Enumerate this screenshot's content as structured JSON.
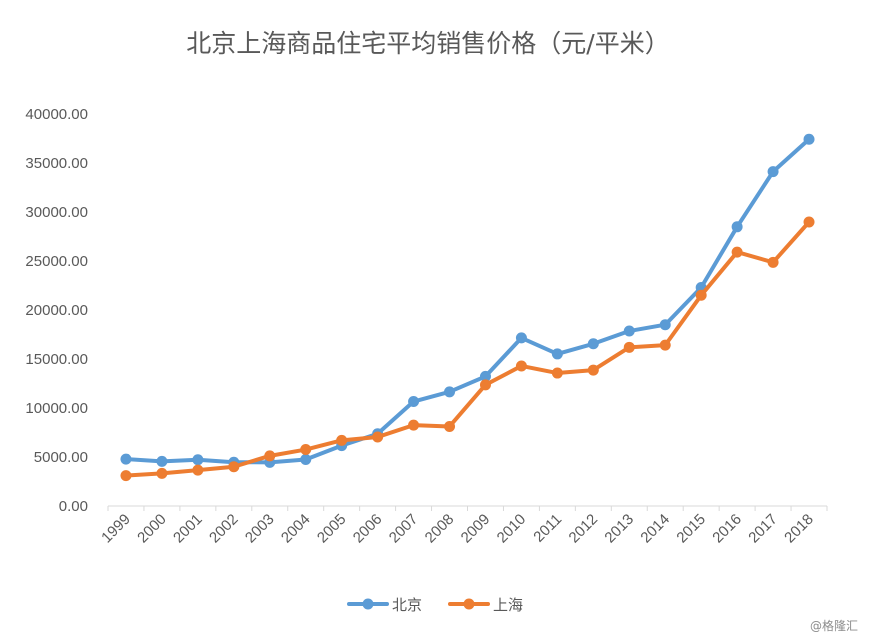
{
  "chart_data": {
    "type": "line",
    "title": "北京上海商品住宅平均销售价格（元/平米）",
    "categories": [
      "1999",
      "2000",
      "2001",
      "2002",
      "2003",
      "2004",
      "2005",
      "2006",
      "2007",
      "2008",
      "2009",
      "2010",
      "2011",
      "2012",
      "2013",
      "2014",
      "2015",
      "2016",
      "2017",
      "2018"
    ],
    "ylim": [
      0,
      40000
    ],
    "yticks": [
      "0.00",
      "5000.00",
      "10000.00",
      "15000.00",
      "20000.00",
      "25000.00",
      "30000.00",
      "35000.00",
      "40000.00"
    ],
    "grid": false,
    "legend_position": "bottom",
    "series": [
      {
        "name": "北京",
        "color": "#5b9bd5",
        "values": [
          4787,
          4557,
          4716,
          4467,
          4456,
          4747,
          6162,
          7375,
          10661,
          11648,
          13224,
          17151,
          15518,
          16553,
          17854,
          18499,
          22300,
          28489,
          34117,
          37420
        ]
      },
      {
        "name": "上海",
        "color": "#ed7d31",
        "values": [
          3102,
          3326,
          3659,
          4007,
          5118,
          5761,
          6698,
          7039,
          8253,
          8115,
          12364,
          14290,
          13566,
          13870,
          16192,
          16415,
          21501,
          25910,
          24866,
          28981
        ]
      }
    ]
  },
  "watermark": "@格隆汇"
}
